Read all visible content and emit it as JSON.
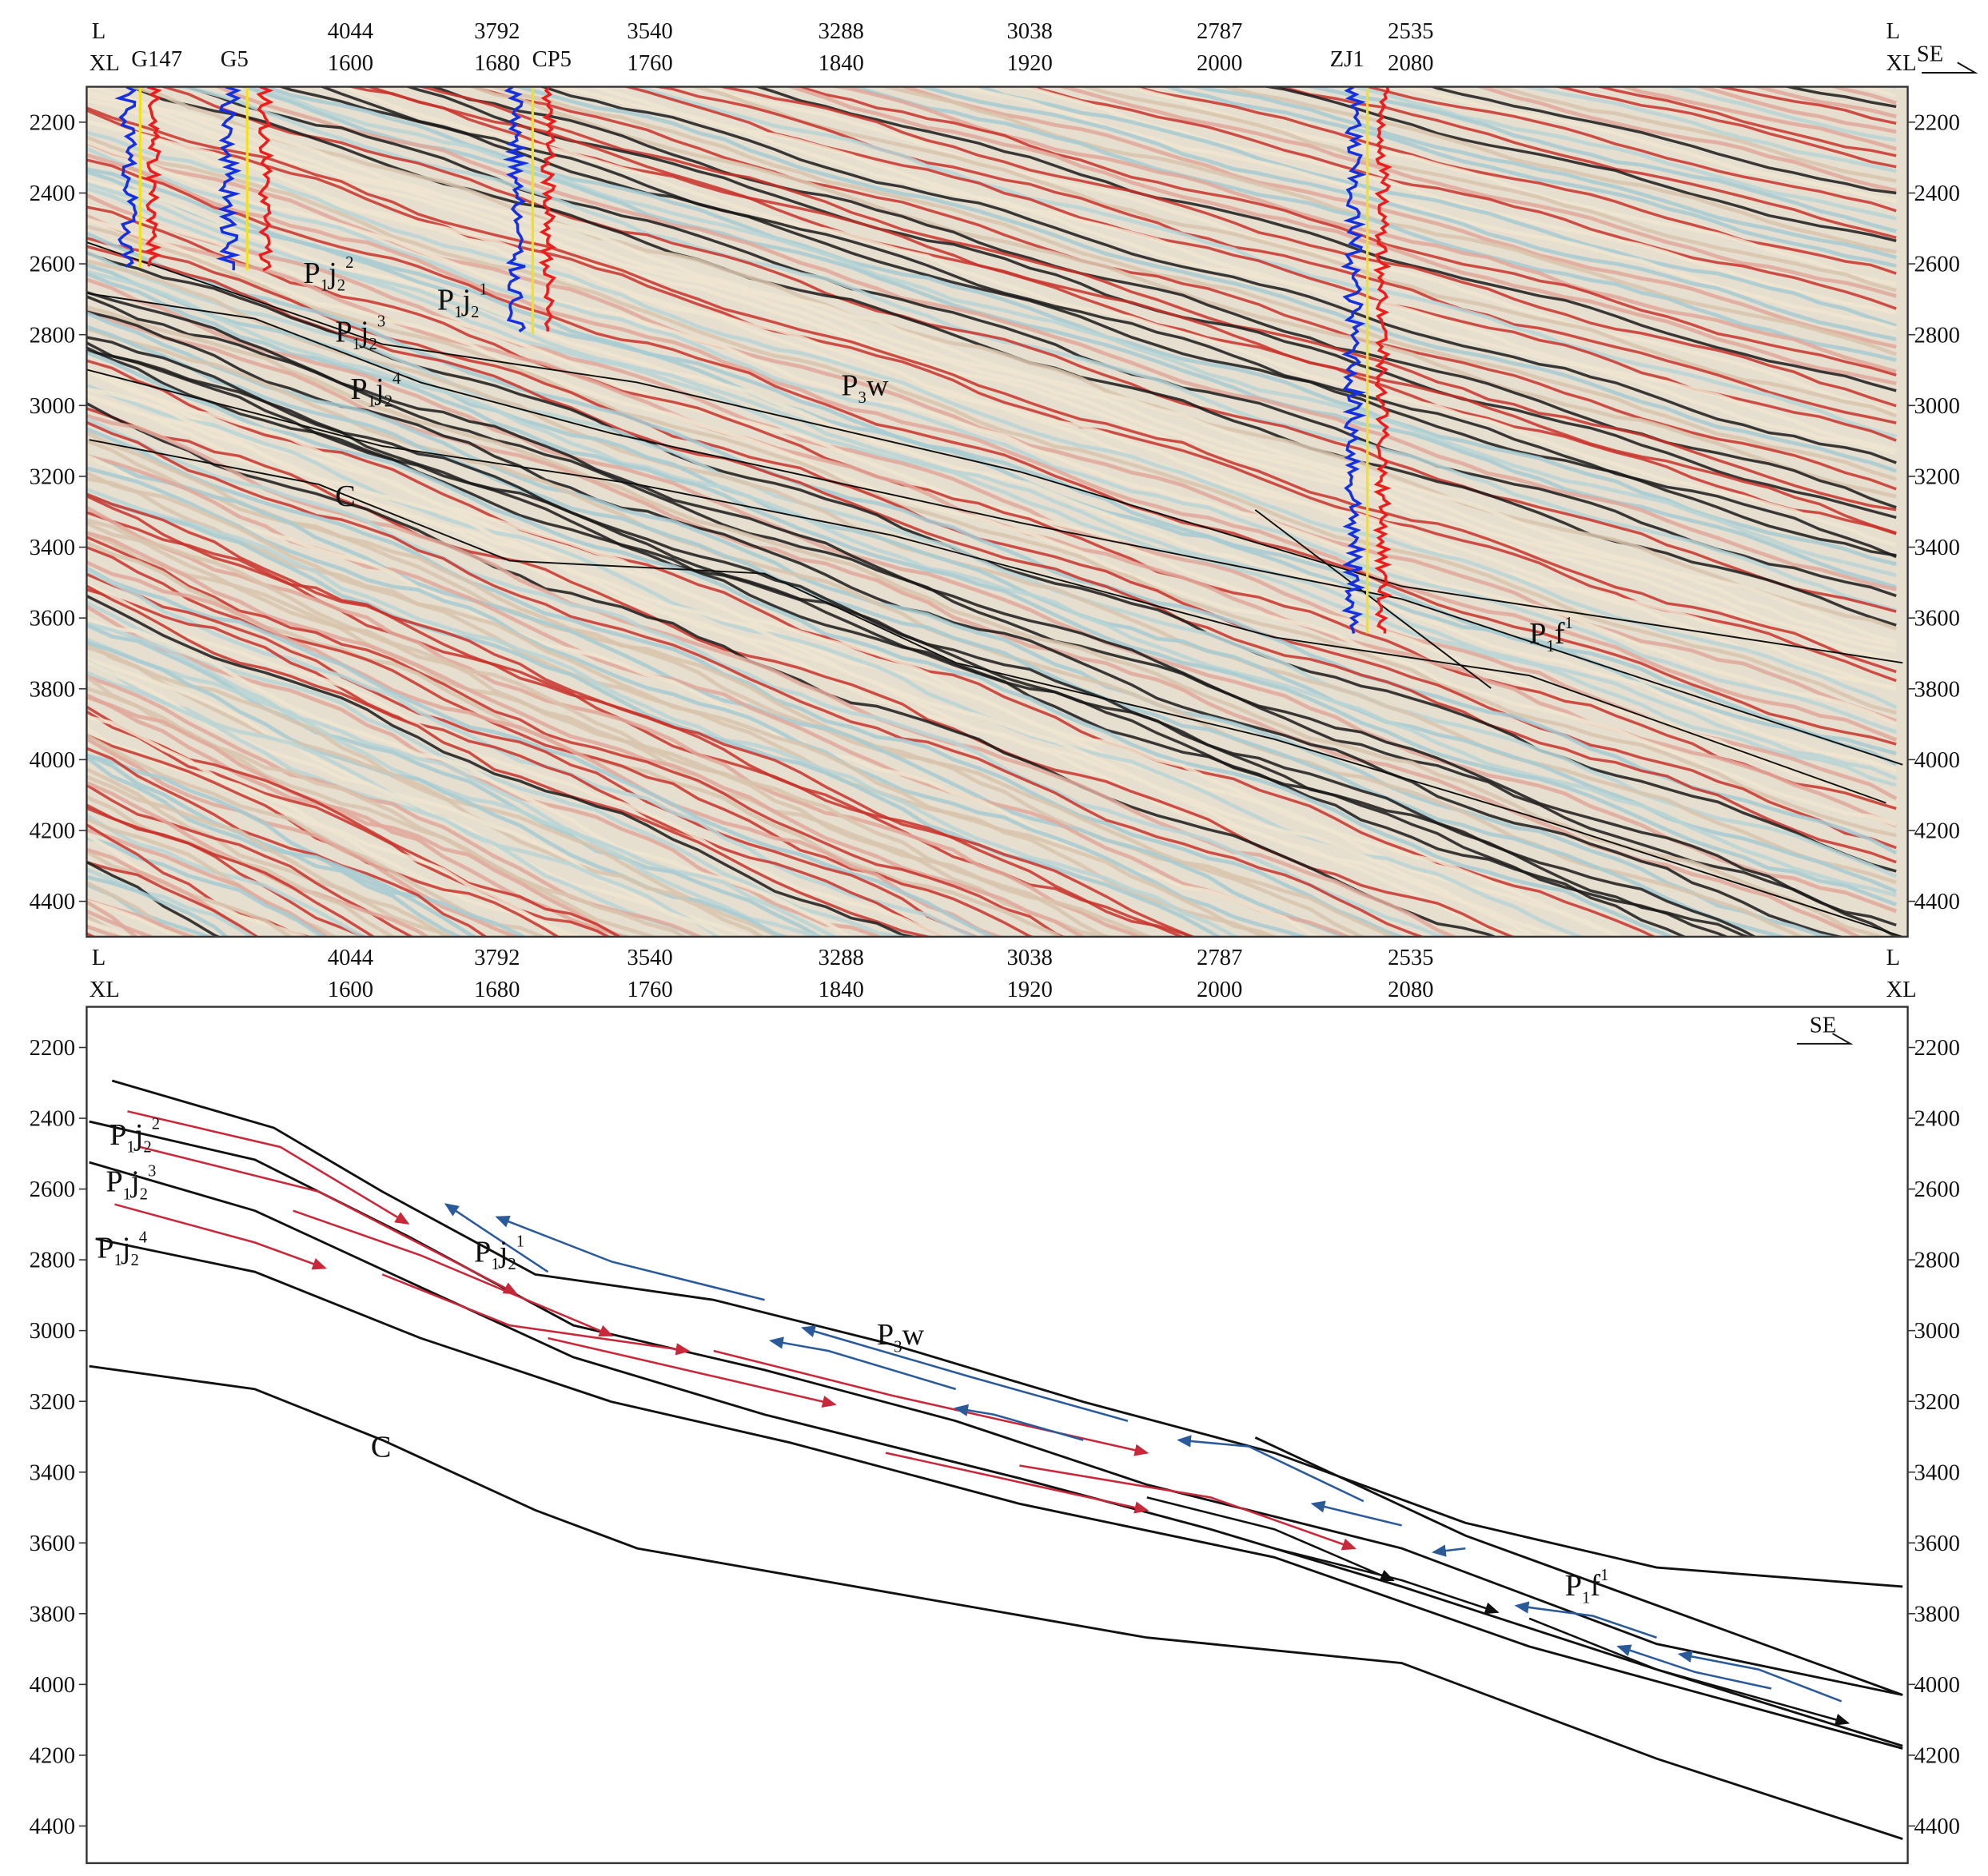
{
  "profile": {
    "line_label": "L",
    "crossline_label": "XL",
    "direction": "SE",
    "inlines": [
      4044,
      3792,
      3540,
      3288,
      3038,
      2787,
      2535
    ],
    "crosslines": [
      1600,
      1680,
      1760,
      1840,
      1920,
      2000,
      2080
    ],
    "depth_ticks": [
      2200,
      2400,
      2600,
      2800,
      3000,
      3200,
      3400,
      3600,
      3800,
      4000,
      4200,
      4400
    ],
    "top_panel_depth_range": [
      2100,
      4500
    ],
    "bottom_panel_depth_range": [
      2085,
      4505
    ]
  },
  "wells": [
    "G147",
    "G5",
    "CP5",
    "ZJ1"
  ],
  "horizon_labels": {
    "top": [
      {
        "parts": [
          "P",
          "1",
          "j",
          "2",
          "2"
        ]
      },
      {
        "parts": [
          "P",
          "1",
          "j",
          "2",
          "1"
        ]
      },
      {
        "parts": [
          "P",
          "1",
          "j",
          "2",
          "3"
        ]
      },
      {
        "parts": [
          "P",
          "1",
          "j",
          "2",
          "4"
        ]
      },
      {
        "parts": [
          "P",
          "3",
          "w"
        ]
      },
      {
        "parts": [
          "C"
        ]
      },
      {
        "parts": [
          "P",
          "1",
          "f",
          "1"
        ]
      }
    ],
    "bottom": [
      {
        "parts": [
          "P",
          "1",
          "j",
          "2",
          "2"
        ]
      },
      {
        "parts": [
          "P",
          "1",
          "j",
          "2",
          "3"
        ]
      },
      {
        "parts": [
          "P",
          "1",
          "j",
          "2",
          "4"
        ]
      },
      {
        "parts": [
          "P",
          "1",
          "j",
          "2",
          "1"
        ]
      },
      {
        "parts": [
          "P",
          "3",
          "w"
        ]
      },
      {
        "parts": [
          "C"
        ]
      },
      {
        "parts": [
          "P",
          "1",
          "f",
          "1"
        ]
      }
    ]
  }
}
